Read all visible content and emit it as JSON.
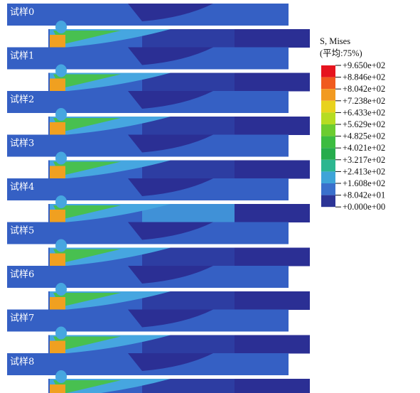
{
  "panels": [
    {
      "label": "试样0"
    },
    {
      "label": "试样1"
    },
    {
      "label": "试样2"
    },
    {
      "label": "试样3"
    },
    {
      "label": "试样4"
    },
    {
      "label": "试样5"
    },
    {
      "label": "试样6"
    },
    {
      "label": "试样7"
    },
    {
      "label": "试样8"
    }
  ],
  "legend": {
    "title": "S, Mises",
    "subtitle": "(平均:75%)",
    "labels": [
      "+9.650e+02",
      "+8.846e+02",
      "+8.042e+02",
      "+7.238e+02",
      "+6.433e+02",
      "+5.629e+02",
      "+4.825e+02",
      "+4.021e+02",
      "+3.217e+02",
      "+2.413e+02",
      "+1.608e+02",
      "+8.042e+01",
      "+0.000e+00"
    ]
  }
}
